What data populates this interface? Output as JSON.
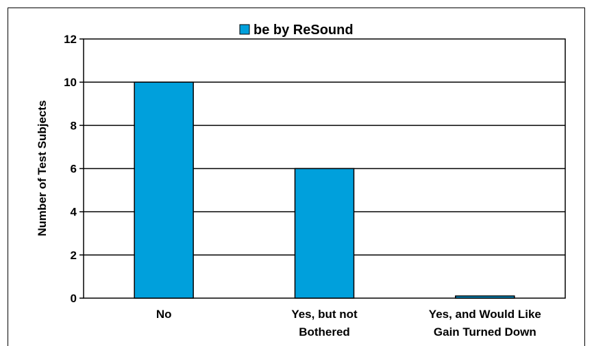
{
  "chart_data": {
    "type": "bar",
    "categories": [
      [
        "No"
      ],
      [
        "Yes, but not",
        "Bothered"
      ],
      [
        "Yes, and Would Like",
        "Gain Turned Down"
      ]
    ],
    "series": [
      {
        "name": "be by ReSound",
        "values": [
          10,
          6,
          0.1
        ],
        "color": "#00A0DC"
      }
    ],
    "ylabel": "Number of Test Subjects",
    "xlabel": "",
    "ylim": [
      0,
      12
    ],
    "yticks": [
      "0",
      "2",
      "4",
      "6",
      "8",
      "10",
      "12"
    ],
    "grid": "horizontal",
    "legend": "top-center"
  }
}
